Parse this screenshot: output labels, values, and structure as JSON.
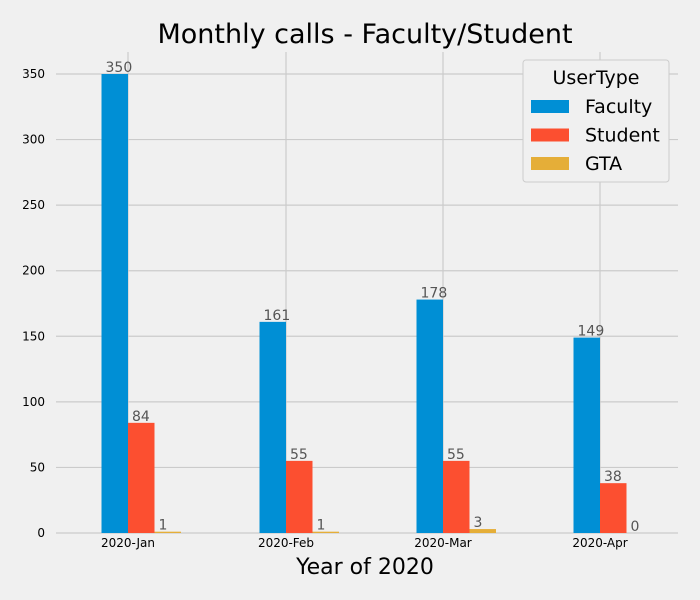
{
  "chart_data": {
    "type": "bar",
    "title": "Monthly calls - Faculty/Student",
    "xlabel": "Year of 2020",
    "ylabel": "",
    "categories": [
      "2020-Jan",
      "2020-Feb",
      "2020-Mar",
      "2020-Apr"
    ],
    "series": [
      {
        "name": "Faculty",
        "values": [
          350,
          161,
          178,
          149
        ],
        "color": "#008fd5"
      },
      {
        "name": "Student",
        "values": [
          84,
          55,
          55,
          38
        ],
        "color": "#fc4f30"
      },
      {
        "name": "GTA",
        "values": [
          1,
          1,
          3,
          0
        ],
        "color": "#e5ae38"
      }
    ],
    "ylim": [
      0,
      365
    ],
    "yticks": [
      0,
      50,
      100,
      150,
      200,
      250,
      300,
      350
    ],
    "grid": true,
    "legend": {
      "title": "UserType",
      "placement": "top-right"
    }
  }
}
